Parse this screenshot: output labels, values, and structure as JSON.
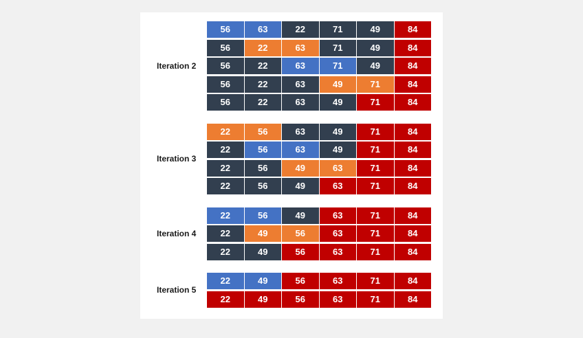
{
  "colors": {
    "blue": "#4472c4",
    "dark": "#323f4f",
    "orange": "#ed7d31",
    "red": "#c00000"
  },
  "groups": [
    {
      "label": "Iteration 2",
      "rows": [
        {
          "values": [
            "56",
            "63",
            "22",
            "71",
            "49",
            "84"
          ],
          "states": [
            "blue",
            "blue",
            "dark",
            "dark",
            "dark",
            "red"
          ]
        },
        {
          "values": [
            "56",
            "22",
            "63",
            "71",
            "49",
            "84"
          ],
          "states": [
            "dark",
            "orange",
            "orange",
            "dark",
            "dark",
            "red"
          ]
        },
        {
          "values": [
            "56",
            "22",
            "63",
            "71",
            "49",
            "84"
          ],
          "states": [
            "dark",
            "dark",
            "blue",
            "blue",
            "dark",
            "red"
          ]
        },
        {
          "values": [
            "56",
            "22",
            "63",
            "49",
            "71",
            "84"
          ],
          "states": [
            "dark",
            "dark",
            "dark",
            "orange",
            "orange",
            "red"
          ]
        },
        {
          "values": [
            "56",
            "22",
            "63",
            "49",
            "71",
            "84"
          ],
          "states": [
            "dark",
            "dark",
            "dark",
            "dark",
            "red",
            "red"
          ]
        }
      ]
    },
    {
      "label": "Iteration 3",
      "rows": [
        {
          "values": [
            "22",
            "56",
            "63",
            "49",
            "71",
            "84"
          ],
          "states": [
            "orange",
            "orange",
            "dark",
            "dark",
            "red",
            "red"
          ]
        },
        {
          "values": [
            "22",
            "56",
            "63",
            "49",
            "71",
            "84"
          ],
          "states": [
            "dark",
            "blue",
            "blue",
            "dark",
            "red",
            "red"
          ]
        },
        {
          "values": [
            "22",
            "56",
            "49",
            "63",
            "71",
            "84"
          ],
          "states": [
            "dark",
            "dark",
            "orange",
            "orange",
            "red",
            "red"
          ]
        },
        {
          "values": [
            "22",
            "56",
            "49",
            "63",
            "71",
            "84"
          ],
          "states": [
            "dark",
            "dark",
            "dark",
            "red",
            "red",
            "red"
          ]
        }
      ]
    },
    {
      "label": "Iteration 4",
      "rows": [
        {
          "values": [
            "22",
            "56",
            "49",
            "63",
            "71",
            "84"
          ],
          "states": [
            "blue",
            "blue",
            "dark",
            "red",
            "red",
            "red"
          ]
        },
        {
          "values": [
            "22",
            "49",
            "56",
            "63",
            "71",
            "84"
          ],
          "states": [
            "dark",
            "orange",
            "orange",
            "red",
            "red",
            "red"
          ]
        },
        {
          "values": [
            "22",
            "49",
            "56",
            "63",
            "71",
            "84"
          ],
          "states": [
            "dark",
            "dark",
            "red",
            "red",
            "red",
            "red"
          ]
        }
      ]
    },
    {
      "label": "Iteration 5",
      "rows": [
        {
          "values": [
            "22",
            "49",
            "56",
            "63",
            "71",
            "84"
          ],
          "states": [
            "blue",
            "blue",
            "red",
            "red",
            "red",
            "red"
          ]
        },
        {
          "values": [
            "22",
            "49",
            "56",
            "63",
            "71",
            "84"
          ],
          "states": [
            "red",
            "red",
            "red",
            "red",
            "red",
            "red"
          ]
        }
      ]
    }
  ]
}
